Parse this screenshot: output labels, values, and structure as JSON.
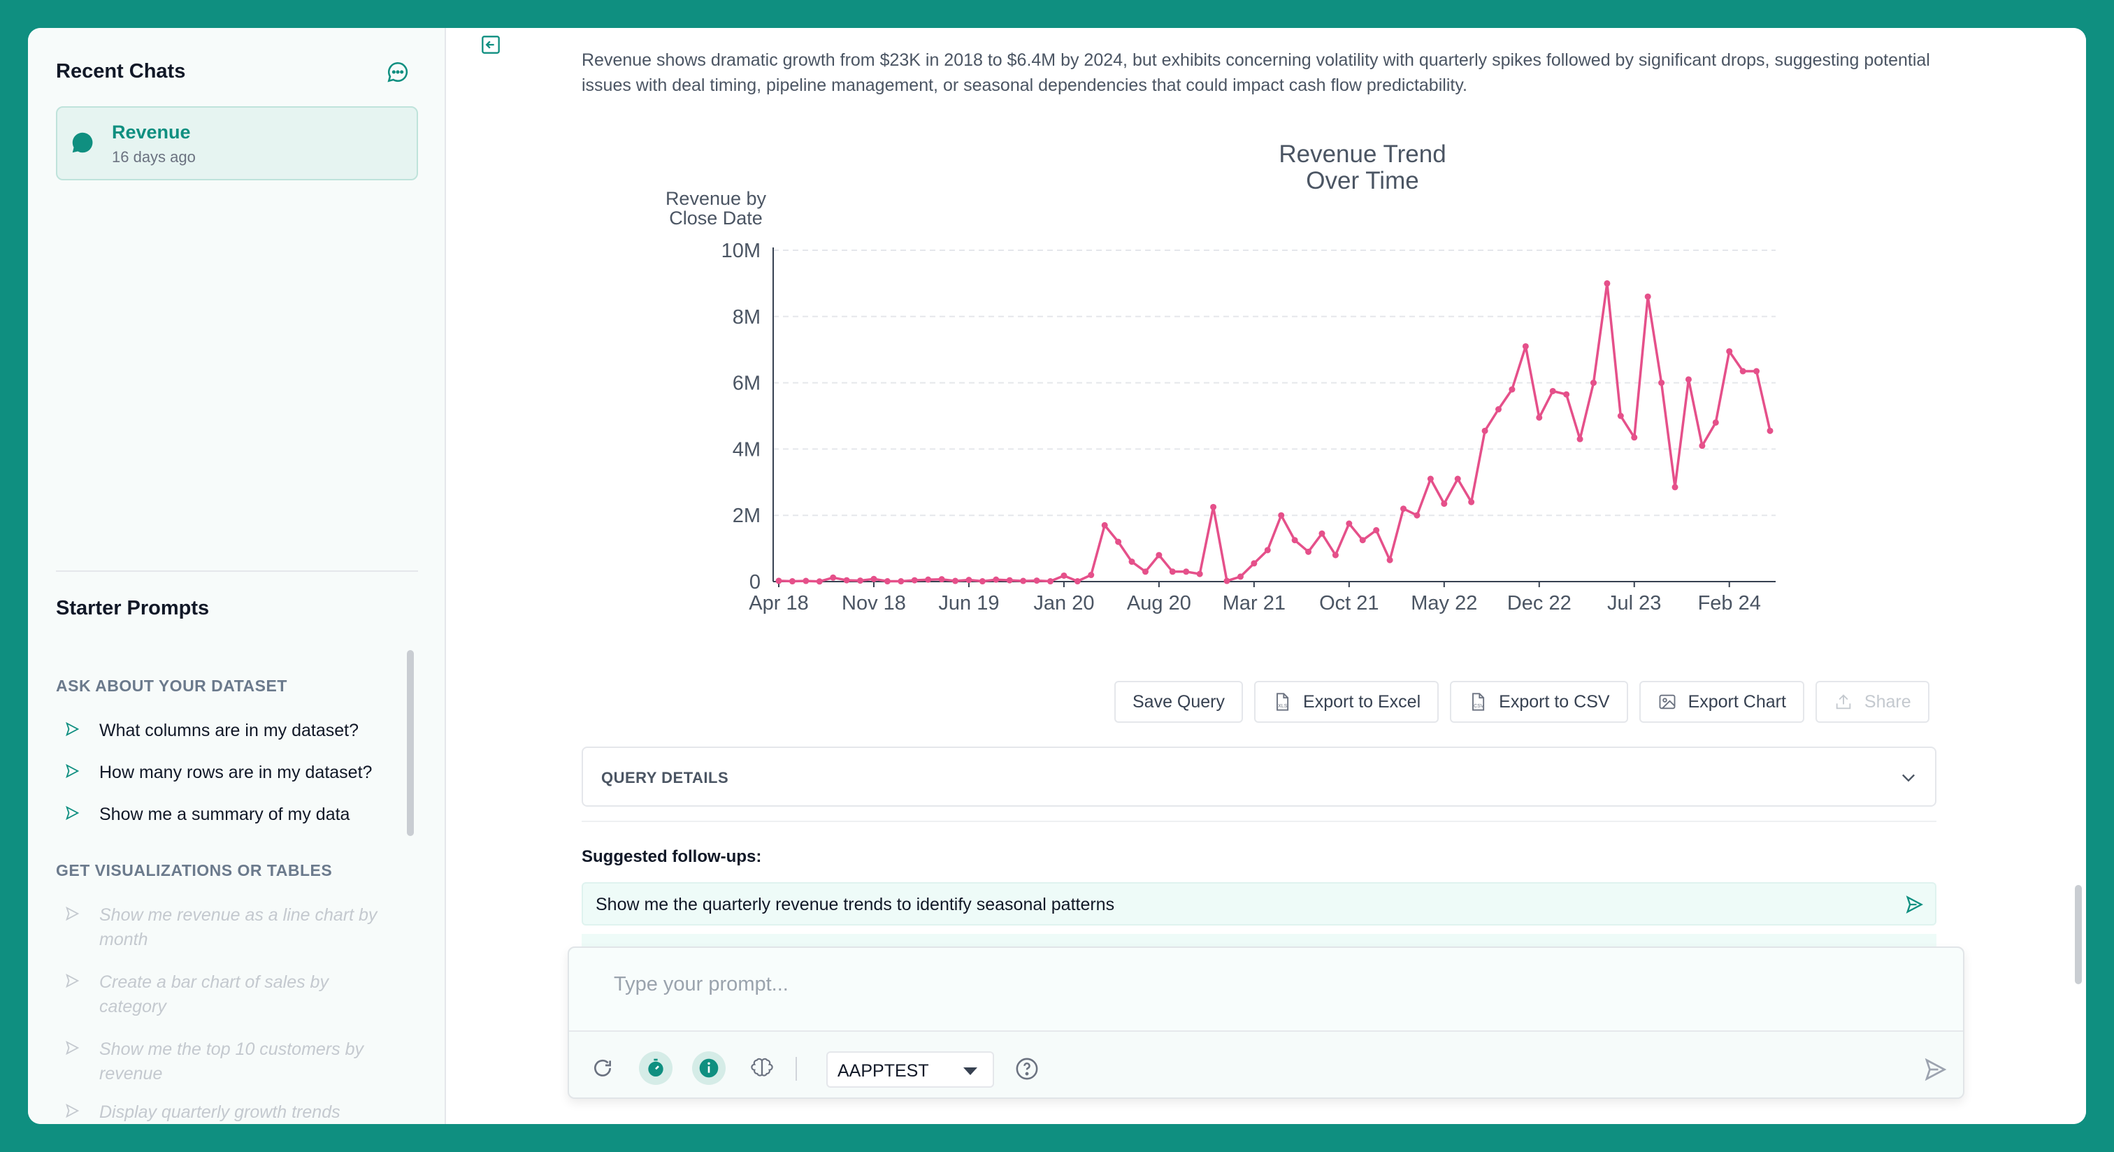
{
  "sidebar": {
    "recent_title": "Recent Chats",
    "chats": [
      {
        "name": "Revenue",
        "time": "16 days ago"
      }
    ],
    "starter_title": "Starter Prompts",
    "sections": [
      {
        "title": "ASK ABOUT YOUR DATASET",
        "items": [
          "What columns are in my dataset?",
          "How many rows are in my dataset?",
          "Show me a summary of my data"
        ]
      },
      {
        "title": "GET VISUALIZATIONS OR TABLES",
        "items": [
          "Show me revenue as a line chart by month",
          "Create a bar chart of sales by category",
          "Show me the top 10 customers by revenue",
          "Display quarterly growth trends"
        ]
      }
    ]
  },
  "main": {
    "summary": "Revenue shows dramatic growth from $23K in 2018 to $6.4M by 2024, but exhibits concerning volatility with quarterly spikes followed by significant drops, suggesting potential issues with deal timing, pipeline management, or seasonal dependencies that could impact cash flow predictability.",
    "toolbar": {
      "save_query": "Save Query",
      "export_excel": "Export to Excel",
      "export_csv": "Export to CSV",
      "export_chart": "Export Chart",
      "share": "Share"
    },
    "query_details": "QUERY DETAILS",
    "followups_title": "Suggested follow-ups:",
    "followups": [
      "Show me the quarterly revenue trends to identify seasonal patterns"
    ]
  },
  "composer": {
    "placeholder": "Type your prompt...",
    "model": "AAPPTEST"
  },
  "colors": {
    "accent": "#0f8f80",
    "series": "#e5508a"
  },
  "chart_data": {
    "type": "line",
    "title": [
      "Revenue Trend",
      "Over Time"
    ],
    "ylabel": [
      "Revenue by",
      "Close Date"
    ],
    "xlabel": "",
    "ylim": [
      0,
      10000000
    ],
    "y_ticks": [
      {
        "v": 0,
        "label": "0"
      },
      {
        "v": 2000000,
        "label": "2M"
      },
      {
        "v": 4000000,
        "label": "4M"
      },
      {
        "v": 6000000,
        "label": "6M"
      },
      {
        "v": 8000000,
        "label": "8M"
      },
      {
        "v": 10000000,
        "label": "10M"
      }
    ],
    "x_ticks": [
      {
        "i": 0,
        "label": "Apr 18"
      },
      {
        "i": 7,
        "label": "Nov 18"
      },
      {
        "i": 14,
        "label": "Jun 19"
      },
      {
        "i": 21,
        "label": "Jan 20"
      },
      {
        "i": 28,
        "label": "Aug 20"
      },
      {
        "i": 35,
        "label": "Mar 21"
      },
      {
        "i": 42,
        "label": "Oct 21"
      },
      {
        "i": 49,
        "label": "May 22"
      },
      {
        "i": 56,
        "label": "Dec 22"
      },
      {
        "i": 63,
        "label": "Jul 23"
      },
      {
        "i": 70,
        "label": "Feb 24"
      }
    ],
    "grid": true,
    "legend_position": "bottom",
    "series": [
      {
        "name": "Revenue by Close Date",
        "values": [
          23000,
          10000,
          20000,
          5000,
          120000,
          40000,
          30000,
          80000,
          10000,
          10000,
          40000,
          60000,
          70000,
          20000,
          50000,
          10000,
          60000,
          40000,
          20000,
          30000,
          10000,
          180000,
          10000,
          200000,
          1700000,
          1200000,
          600000,
          300000,
          800000,
          300000,
          300000,
          230000,
          2250000,
          20000,
          150000,
          550000,
          950000,
          2000000,
          1250000,
          900000,
          1450000,
          800000,
          1750000,
          1250000,
          1550000,
          650000,
          2200000,
          2000000,
          3100000,
          2350000,
          3100000,
          2400000,
          4550000,
          5200000,
          5800000,
          7100000,
          4950000,
          5750000,
          5650000,
          4300000,
          6000000,
          9000000,
          5000000,
          4350000,
          8600000,
          6000000,
          2850000,
          6100000,
          4100000,
          4800000,
          6950000,
          6350000,
          6350000,
          4550000
        ]
      }
    ]
  }
}
